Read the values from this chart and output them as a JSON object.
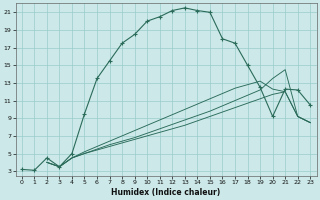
{
  "bg_color": "#cce8e8",
  "grid_color": "#99cccc",
  "line_color": "#2a6b5a",
  "xlabel": "Humidex (Indice chaleur)",
  "xlim": [
    -0.5,
    23.5
  ],
  "ylim": [
    2.5,
    22
  ],
  "xticks": [
    0,
    1,
    2,
    3,
    4,
    5,
    6,
    7,
    8,
    9,
    10,
    11,
    12,
    13,
    14,
    15,
    16,
    17,
    18,
    19,
    20,
    21,
    22,
    23
  ],
  "yticks": [
    3,
    5,
    7,
    9,
    11,
    13,
    15,
    17,
    19,
    21
  ],
  "line1_x": [
    0,
    1,
    2,
    3,
    4,
    5,
    6,
    7,
    8,
    9,
    10,
    11,
    12,
    13,
    14,
    15,
    16,
    17,
    18,
    19,
    20,
    21,
    22,
    23
  ],
  "line1_y": [
    3.2,
    3.1,
    4.5,
    3.5,
    5.0,
    9.5,
    13.5,
    15.5,
    17.5,
    18.5,
    20.0,
    20.5,
    21.2,
    21.5,
    21.2,
    21.0,
    18.0,
    17.5,
    15.0,
    12.5,
    9.2,
    12.3,
    12.2,
    10.5
  ],
  "line2_x": [
    2,
    3,
    4,
    5,
    6,
    7,
    8,
    9,
    10,
    11,
    12,
    13,
    14,
    15,
    16,
    17,
    18,
    19,
    20,
    21,
    22,
    23
  ],
  "line2_y": [
    4.0,
    3.5,
    4.5,
    5.0,
    5.4,
    5.8,
    6.2,
    6.6,
    7.0,
    7.4,
    7.8,
    8.2,
    8.7,
    9.2,
    9.7,
    10.2,
    10.7,
    11.2,
    11.7,
    12.0,
    9.2,
    8.5
  ],
  "line3_x": [
    2,
    3,
    4,
    5,
    6,
    7,
    8,
    9,
    10,
    11,
    12,
    13,
    14,
    15,
    16,
    17,
    18,
    19,
    20,
    21,
    22,
    23
  ],
  "line3_y": [
    4.0,
    3.5,
    4.5,
    5.0,
    5.5,
    6.0,
    6.4,
    6.8,
    7.3,
    7.8,
    8.3,
    8.8,
    9.3,
    9.8,
    10.4,
    11.0,
    11.6,
    12.2,
    13.5,
    14.5,
    9.2,
    8.5
  ],
  "line4_x": [
    2,
    3,
    4,
    5,
    6,
    7,
    8,
    9,
    10,
    11,
    12,
    13,
    14,
    15,
    16,
    17,
    18,
    19,
    20,
    21,
    22,
    23
  ],
  "line4_y": [
    4.0,
    3.5,
    4.5,
    5.2,
    5.8,
    6.4,
    7.0,
    7.6,
    8.2,
    8.8,
    9.4,
    10.0,
    10.6,
    11.2,
    11.8,
    12.4,
    12.8,
    13.2,
    12.3,
    12.0,
    9.2,
    8.5
  ]
}
